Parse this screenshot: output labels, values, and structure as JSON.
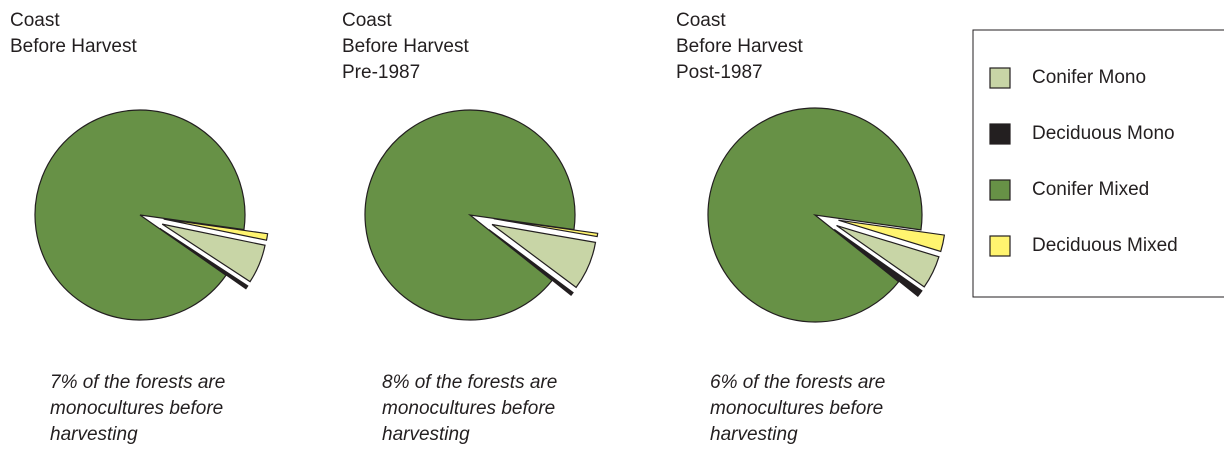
{
  "chart_data": [
    {
      "type": "pie",
      "title": [
        "Coast",
        "Before Harvest"
      ],
      "annotation": [
        "7% of the forests are",
        "monocultures before",
        "harvesting"
      ],
      "categories": [
        "Conifer Mono",
        "Deciduous Mono",
        "Conifer Mixed",
        "Deciduous Mixed"
      ],
      "values": [
        6,
        0.5,
        92.5,
        1
      ],
      "colors": [
        "#c8d5a6",
        "#231f20",
        "#679146",
        "#fff46f"
      ]
    },
    {
      "type": "pie",
      "title": [
        "Coast",
        "Before Harvest",
        "Pre-1987"
      ],
      "annotation": [
        "8% of the forests are",
        "monocultures before",
        "harvesting"
      ],
      "categories": [
        "Conifer Mono",
        "Deciduous Mono",
        "Conifer Mixed",
        "Deciduous Mixed"
      ],
      "values": [
        7.5,
        0.5,
        91.5,
        0.5
      ],
      "colors": [
        "#c8d5a6",
        "#231f20",
        "#679146",
        "#fff46f"
      ]
    },
    {
      "type": "pie",
      "title": [
        "Coast",
        "Before Harvest",
        "Post-1987"
      ],
      "annotation": [
        "6% of the forests are",
        "monocultures before",
        "harvesting"
      ],
      "categories": [
        "Conifer Mono",
        "Deciduous Mono",
        "Conifer Mixed",
        "Deciduous Mixed"
      ],
      "values": [
        5,
        1,
        91.5,
        2.5
      ],
      "colors": [
        "#c8d5a6",
        "#231f20",
        "#679146",
        "#fff46f"
      ]
    }
  ]
}
